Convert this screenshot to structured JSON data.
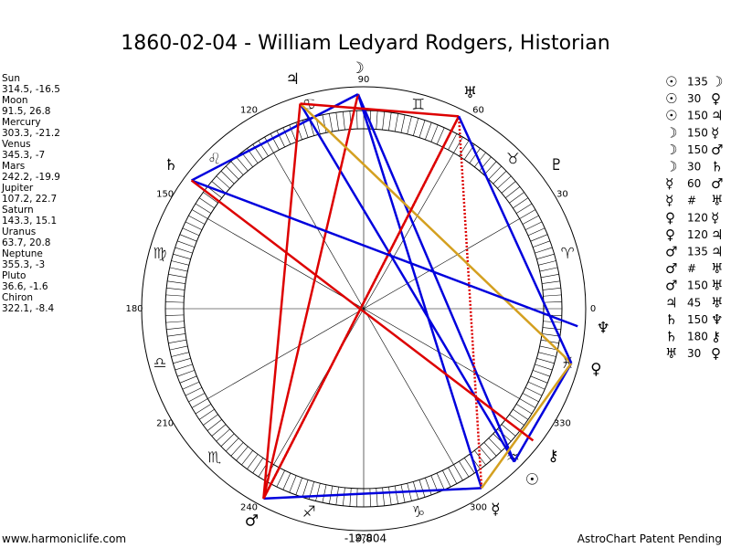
{
  "title": "1860-02-04 - William Ledyard Rodgers, Historian",
  "planets": [
    {
      "name": "Sun",
      "glyph": "☉",
      "longitude": 314.5,
      "latitude": -16.5
    },
    {
      "name": "Moon",
      "glyph": "☽",
      "longitude": 91.5,
      "latitude": 26.8
    },
    {
      "name": "Mercury",
      "glyph": "☿",
      "longitude": 303.3,
      "latitude": -21.2
    },
    {
      "name": "Venus",
      "glyph": "♀",
      "longitude": 345.3,
      "latitude": -7.0
    },
    {
      "name": "Mars",
      "glyph": "♂",
      "longitude": 242.2,
      "latitude": -19.9
    },
    {
      "name": "Jupiter",
      "glyph": "♃",
      "longitude": 107.2,
      "latitude": 22.7
    },
    {
      "name": "Saturn",
      "glyph": "♄",
      "longitude": 143.3,
      "latitude": 15.1
    },
    {
      "name": "Uranus",
      "glyph": "♅",
      "longitude": 63.7,
      "latitude": 20.8
    },
    {
      "name": "Neptune",
      "glyph": "♆",
      "longitude": 355.3,
      "latitude": -3.0
    },
    {
      "name": "Pluto",
      "glyph": "♇",
      "longitude": 36.6,
      "latitude": -1.6
    },
    {
      "name": "Chiron",
      "glyph": "⚷",
      "longitude": 322.1,
      "latitude": -8.4
    }
  ],
  "aspects": [
    {
      "from": "☉",
      "aspect": 135,
      "to": "☽",
      "color": "#0000dd"
    },
    {
      "from": "☉",
      "aspect": 30,
      "to": "♀",
      "color": "#0000dd"
    },
    {
      "from": "☉",
      "aspect": 150,
      "to": "♃",
      "color": "#0000dd"
    },
    {
      "from": "☽",
      "aspect": 150,
      "to": "☿",
      "color": "#0000dd"
    },
    {
      "from": "☽",
      "aspect": 150,
      "to": "♂",
      "color": "#dd0000"
    },
    {
      "from": "☽",
      "aspect": 30,
      "to": "♄",
      "color": "#0000dd"
    },
    {
      "from": "☿",
      "aspect": 60,
      "to": "♂",
      "color": "#0000dd"
    },
    {
      "from": "☿",
      "aspect": "#",
      "to": "♅",
      "color": "#dd0000"
    },
    {
      "from": "♀",
      "aspect": 120,
      "to": "☿",
      "color": "#d4a020"
    },
    {
      "from": "♀",
      "aspect": 120,
      "to": "♃",
      "color": "#d4a020"
    },
    {
      "from": "♂",
      "aspect": 135,
      "to": "♃",
      "color": "#dd0000"
    },
    {
      "from": "♂",
      "aspect": "#",
      "to": "♅",
      "color": "#dd0000"
    },
    {
      "from": "♂",
      "aspect": 150,
      "to": "♅",
      "color": "#dd0000"
    },
    {
      "from": "♃",
      "aspect": 45,
      "to": "♅",
      "color": "#dd0000"
    },
    {
      "from": "♄",
      "aspect": 150,
      "to": "♆",
      "color": "#0000dd"
    },
    {
      "from": "♄",
      "aspect": 180,
      "to": "⚷",
      "color": "#dd0000"
    },
    {
      "from": "♅",
      "aspect": 30,
      "to": "♀",
      "color": "#0000dd"
    }
  ],
  "signs": [
    "♈",
    "♉",
    "♊",
    "♋",
    "♌",
    "♍",
    "♎",
    "♏",
    "♐",
    "♑",
    "♒",
    "♓"
  ],
  "degree_ticks": [
    0,
    30,
    60,
    90,
    120,
    150,
    180,
    210,
    240,
    270,
    300,
    330
  ],
  "center_label": "-19,804",
  "footer_left": "www.harmoniclife.com",
  "footer_right": "AstroChart Patent Pending"
}
